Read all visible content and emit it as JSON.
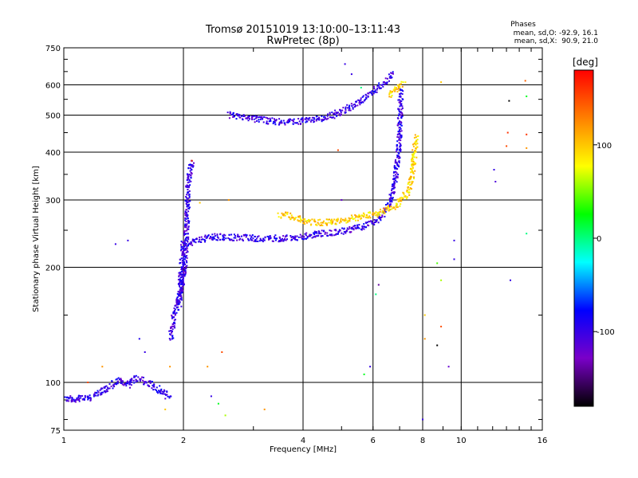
{
  "chart_data": {
    "type": "scatter",
    "title": "Tromsø 20151019 13:10:00–13:11:43",
    "subtitle": "RwPretec (8p)",
    "xlabel": "Frequency [MHz]",
    "ylabel": "Stationary phase Virtual Height [km]",
    "x_scale": "log",
    "y_scale": "log",
    "xlim": [
      1,
      16
    ],
    "ylim": [
      75,
      750
    ],
    "x_ticks": [
      1,
      2,
      4,
      6,
      8,
      10,
      16
    ],
    "y_ticks": [
      75,
      100,
      200,
      300,
      400,
      500,
      600,
      750
    ],
    "grid": true,
    "stats": {
      "title": "Phases",
      "line_o": "mean, sd,O: -92.9, 16.1",
      "line_x": "mean, sd,X:  90.9, 21.0"
    },
    "colorbar": {
      "label": "[deg]",
      "range": [
        -180,
        180
      ],
      "ticks": [
        100,
        0,
        -100
      ],
      "colors": [
        "#ff0000",
        "#ff8000",
        "#ffff00",
        "#00ff00",
        "#00ffff",
        "#0000ff",
        "#7a00c8",
        "#000000"
      ]
    },
    "series": [
      {
        "mode": "O",
        "phase": -100,
        "segments": [
          {
            "f": [
              1.0,
              1.03,
              1.06,
              1.1,
              1.15,
              1.2,
              1.25,
              1.3,
              1.35,
              1.4,
              1.45,
              1.5,
              1.55,
              1.6,
              1.65,
              1.7,
              1.75,
              1.8,
              1.85
            ],
            "h": [
              90,
              91,
              89,
              92,
              90,
              93,
              95,
              97,
              100,
              101,
              98,
              103,
              102,
              100,
              99,
              97,
              95,
              93,
              91
            ]
          },
          {
            "f": [
              1.86,
              1.9,
              1.95,
              1.97,
              2.0,
              2.02,
              2.03,
              2.04,
              2.05,
              2.06,
              2.08,
              2.1
            ],
            "h": [
              130,
              150,
              165,
              175,
              190,
              210,
              230,
              260,
              300,
              330,
              360,
              380
            ]
          },
          {
            "f": [
              1.95,
              2.0,
              2.1,
              2.2,
              2.35,
              2.5,
              2.7,
              2.9,
              3.1,
              3.3,
              3.5,
              3.7,
              3.9,
              4.1,
              4.3,
              4.6,
              4.9,
              5.2,
              5.5,
              5.8,
              6.0,
              6.2,
              6.4,
              6.6,
              6.75,
              6.85,
              6.95,
              7.0,
              7.03,
              7.05
            ],
            "h": [
              160,
              230,
              232,
              236,
              240,
              240,
              239,
              239,
              238,
              238,
              238,
              239,
              240,
              242,
              244,
              246,
              248,
              250,
              254,
              258,
              262,
              268,
              278,
              292,
              315,
              350,
              400,
              460,
              520,
              580
            ]
          },
          {
            "f": [
              2.6,
              2.8,
              3.0,
              3.2,
              3.4,
              3.6,
              3.8,
              4.0,
              4.2,
              4.4,
              4.6,
              4.8,
              5.0,
              5.2,
              5.4,
              5.6,
              5.8,
              6.0,
              6.2,
              6.4,
              6.55,
              6.7
            ],
            "h": [
              500,
              495,
              490,
              485,
              480,
              480,
              480,
              482,
              485,
              490,
              495,
              502,
              510,
              520,
              530,
              545,
              560,
              575,
              590,
              605,
              620,
              640
            ]
          }
        ]
      },
      {
        "mode": "X",
        "phase": 95,
        "segments": [
          {
            "f": [
              3.5,
              3.7,
              3.9,
              4.1,
              4.3,
              4.5,
              4.7,
              4.9,
              5.1,
              5.3,
              5.5,
              5.7,
              5.9,
              6.1,
              6.3,
              6.5,
              6.7,
              6.9,
              7.1,
              7.3,
              7.45,
              7.55,
              7.6,
              7.65,
              7.7
            ],
            "h": [
              275,
              272,
              268,
              264,
              262,
              262,
              262,
              263,
              265,
              268,
              270,
              272,
              274,
              276,
              279,
              283,
              287,
              292,
              300,
              312,
              330,
              355,
              380,
              410,
              440
            ]
          },
          {
            "f": [
              6.6,
              6.8,
              7.0,
              7.2
            ],
            "h": [
              560,
              580,
              600,
              605
            ]
          }
        ]
      }
    ],
    "scatter_points": [
      {
        "f": 5.1,
        "h": 680,
        "phase": -100
      },
      {
        "f": 5.3,
        "h": 640,
        "phase": -100
      },
      {
        "f": 5.6,
        "h": 590,
        "phase": 0
      },
      {
        "f": 8.9,
        "h": 610,
        "phase": 100
      },
      {
        "f": 13.2,
        "h": 545,
        "phase": -180
      },
      {
        "f": 14.5,
        "h": 615,
        "phase": 140
      },
      {
        "f": 14.6,
        "h": 560,
        "phase": 20
      },
      {
        "f": 13.1,
        "h": 450,
        "phase": 160
      },
      {
        "f": 14.6,
        "h": 445,
        "phase": 160
      },
      {
        "f": 13.0,
        "h": 415,
        "phase": 150
      },
      {
        "f": 14.6,
        "h": 410,
        "phase": 120
      },
      {
        "f": 12.1,
        "h": 360,
        "phase": -100
      },
      {
        "f": 12.2,
        "h": 335,
        "phase": -110
      },
      {
        "f": 14.6,
        "h": 245,
        "phase": 0
      },
      {
        "f": 13.3,
        "h": 185,
        "phase": -100
      },
      {
        "f": 9.6,
        "h": 235,
        "phase": -100
      },
      {
        "f": 9.6,
        "h": 210,
        "phase": -100
      },
      {
        "f": 8.7,
        "h": 205,
        "phase": 40
      },
      {
        "f": 8.9,
        "h": 185,
        "phase": 60
      },
      {
        "f": 8.9,
        "h": 140,
        "phase": 150
      },
      {
        "f": 8.7,
        "h": 125,
        "phase": -180
      },
      {
        "f": 9.3,
        "h": 110,
        "phase": -120
      },
      {
        "f": 8.1,
        "h": 150,
        "phase": 100
      },
      {
        "f": 8.1,
        "h": 130,
        "phase": 120
      },
      {
        "f": 8.0,
        "h": 80,
        "phase": -100
      },
      {
        "f": 6.2,
        "h": 180,
        "phase": -140
      },
      {
        "f": 6.1,
        "h": 170,
        "phase": 0
      },
      {
        "f": 5.9,
        "h": 110,
        "phase": -100
      },
      {
        "f": 5.7,
        "h": 105,
        "phase": 20
      },
      {
        "f": 1.35,
        "h": 230,
        "phase": -100
      },
      {
        "f": 1.45,
        "h": 235,
        "phase": -100
      },
      {
        "f": 1.55,
        "h": 130,
        "phase": -90
      },
      {
        "f": 1.6,
        "h": 120,
        "phase": -100
      },
      {
        "f": 1.8,
        "h": 85,
        "phase": 100
      },
      {
        "f": 1.85,
        "h": 110,
        "phase": 120
      },
      {
        "f": 2.2,
        "h": 295,
        "phase": 100
      },
      {
        "f": 2.3,
        "h": 110,
        "phase": 120
      },
      {
        "f": 2.5,
        "h": 120,
        "phase": 150
      },
      {
        "f": 2.45,
        "h": 88,
        "phase": 20
      },
      {
        "f": 2.55,
        "h": 82,
        "phase": 60
      },
      {
        "f": 3.2,
        "h": 85,
        "phase": 120
      },
      {
        "f": 2.1,
        "h": 380,
        "phase": 150
      },
      {
        "f": 2.6,
        "h": 300,
        "phase": 120
      },
      {
        "f": 4.9,
        "h": 405,
        "phase": 150
      },
      {
        "f": 5.0,
        "h": 300,
        "phase": -120
      },
      {
        "f": 2.35,
        "h": 92,
        "phase": -100
      },
      {
        "f": 1.25,
        "h": 110,
        "phase": 120
      },
      {
        "f": 1.15,
        "h": 100,
        "phase": 150
      }
    ]
  }
}
